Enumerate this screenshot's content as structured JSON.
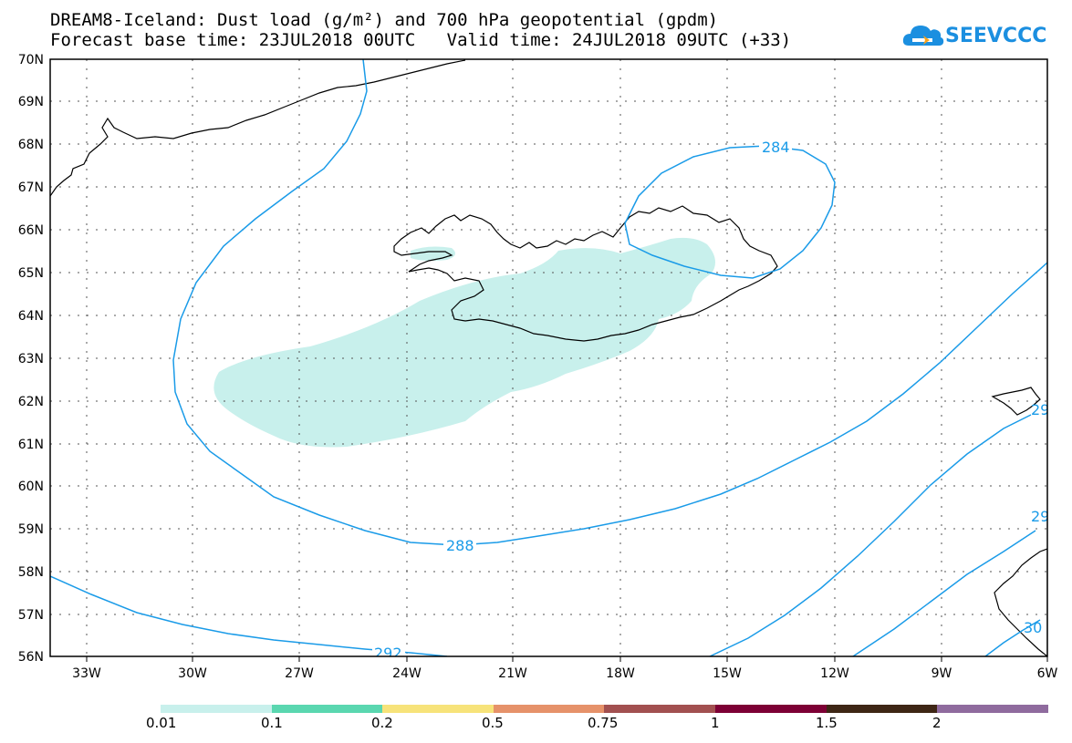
{
  "title": {
    "line1": "DREAM8-Iceland: Dust load (g/m²) and 700 hPa geopotential (gpdm)",
    "line2": "Forecast base time: 23JUL2018 00UTC   Valid time: 24JUL2018 09UTC (+33)"
  },
  "logo": {
    "text": "SEEVCCC",
    "color": "#1b8fe0",
    "accent": "#f7a21b"
  },
  "map": {
    "lat_labels": [
      "70N",
      "69N",
      "68N",
      "67N",
      "66N",
      "65N",
      "64N",
      "63N",
      "62N",
      "61N",
      "60N",
      "59N",
      "58N",
      "57N",
      "56N"
    ],
    "lon_labels": [
      "33W",
      "30W",
      "27W",
      "24W",
      "21W",
      "18W",
      "15W",
      "12W",
      "9W",
      "6W"
    ],
    "contour_color": "#1a9be8",
    "coast_color": "#000000",
    "dust_color": "#c8f0ec",
    "contour_labels": [
      {
        "id": "c284",
        "text": "284"
      },
      {
        "id": "c288",
        "text": "288"
      },
      {
        "id": "c292",
        "text": "292"
      },
      {
        "id": "c29a",
        "text": "29"
      },
      {
        "id": "c29b",
        "text": "29"
      },
      {
        "id": "c30",
        "text": "30"
      }
    ]
  },
  "colorbar": {
    "colors": [
      "#c8f0ec",
      "#5ad7b0",
      "#f7e37a",
      "#e6926a",
      "#a25050",
      "#7d0035",
      "#3e2615",
      "#8f6b9e"
    ],
    "labels": [
      "0.01",
      "0.1",
      "0.2",
      "0.5",
      "0.75",
      "1",
      "1.5",
      "2"
    ]
  }
}
